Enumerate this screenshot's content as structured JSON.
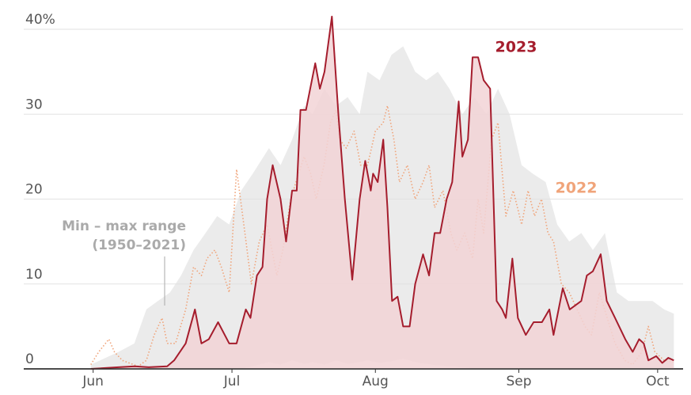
{
  "chart_data": {
    "type": "line",
    "xlim": [
      -15,
      127.5
    ],
    "xticks": [
      {
        "value": 0,
        "label": "Jun"
      },
      {
        "value": 30,
        "label": "Jul"
      },
      {
        "value": 61,
        "label": "Aug"
      },
      {
        "value": 92,
        "label": "Sep"
      },
      {
        "value": 122,
        "label": "Oct"
      }
    ],
    "ylim": [
      0,
      40.5
    ],
    "yticks": [
      0,
      10,
      20,
      30,
      {
        "value": 40,
        "label": "40%"
      }
    ],
    "grid": true,
    "range": {
      "label": [
        "Min – max range",
        "(1950–2021)"
      ],
      "color": "#ebebeb",
      "x": [
        -0.5,
        5.5,
        8.9,
        11.5,
        14,
        16.6,
        19,
        21.7,
        24.3,
        26.8,
        29.4,
        32,
        34.5,
        38,
        40.5,
        43,
        45.6,
        47.4,
        50,
        52.5,
        55,
        57.6,
        59.3,
        61.9,
        64.5,
        67,
        69.6,
        72,
        74.5,
        77,
        79.8,
        82.4,
        85,
        87.5,
        90,
        92.6,
        95,
        97.8,
        100.3,
        102.9,
        105.5,
        108,
        110.6,
        113.2,
        115.7,
        118.3,
        120.9,
        123.4,
        125.5
      ],
      "high": [
        0.5,
        2,
        3,
        7,
        8,
        9,
        11,
        14,
        16,
        18,
        17,
        21,
        23,
        26,
        24,
        27,
        31,
        30,
        33,
        31,
        32,
        30,
        35,
        34,
        37,
        38,
        35,
        34,
        35,
        33,
        30,
        32,
        30,
        33,
        30,
        24,
        23,
        22,
        17,
        15,
        16,
        14,
        16,
        9,
        8,
        8,
        8,
        7,
        6.5
      ],
      "low": [
        0,
        0,
        0,
        0,
        0,
        0,
        0,
        0,
        0,
        0,
        0,
        0,
        0.3,
        0.8,
        0.5,
        1,
        0.6,
        0.8,
        0.5,
        1,
        0.6,
        0.8,
        1,
        0.7,
        0.9,
        1.2,
        0.8,
        0.6,
        0.4,
        0.3,
        0.2,
        0,
        0,
        0,
        0,
        0,
        0,
        0,
        0,
        0,
        0,
        0,
        0,
        0,
        0,
        0,
        0,
        0,
        0
      ]
    },
    "series": [
      {
        "name": "2022",
        "color": "#f0a47a",
        "style": "dotted",
        "x": [
          -0.5,
          1.2,
          3.4,
          4.6,
          6.3,
          9.7,
          11.5,
          13.2,
          14.9,
          16,
          17.8,
          20,
          21.7,
          23.4,
          24.6,
          26.3,
          27.7,
          29.4,
          31,
          32.8,
          34.2,
          35.9,
          37.6,
          39.7,
          41,
          42.7,
          44.4,
          45.6,
          47,
          48.2,
          49.9,
          51.3,
          52.5,
          53.3,
          54.7,
          56.4,
          57.8,
          59.3,
          61,
          62.7,
          63.6,
          65,
          66.2,
          67.9,
          69.6,
          71.3,
          72.6,
          73.8,
          75.6,
          77.3,
          78.6,
          80.3,
          82,
          83.2,
          84.4,
          86.1,
          87.5,
          89.2,
          90.8,
          92.6,
          94,
          95.4,
          96.9,
          98.3,
          99.5,
          101.2,
          102.9,
          104.6,
          106.3,
          107.7,
          109.4,
          111.1,
          112.8,
          114.9,
          116.6,
          118.6,
          120,
          121.4,
          123.4,
          125.5
        ],
        "values": [
          0.5,
          2,
          3.5,
          2,
          1,
          0.3,
          1,
          4,
          6,
          3,
          3,
          7,
          12,
          11,
          13,
          14,
          12,
          9,
          23.5,
          16,
          10,
          15,
          17,
          11,
          14,
          20,
          23,
          25,
          23,
          20,
          24,
          29,
          30.5,
          27,
          26,
          28,
          24,
          24,
          28,
          29,
          31,
          27,
          22,
          24,
          20,
          22,
          24,
          19,
          21,
          16,
          14,
          16,
          13,
          20,
          16,
          27,
          29,
          18,
          21,
          17,
          21,
          18,
          20,
          16,
          15,
          10,
          9,
          7,
          5,
          4,
          9,
          6,
          3,
          1,
          0.5,
          2,
          5,
          2,
          1,
          0.8
        ]
      },
      {
        "name": "2023",
        "color": "#a51d2d",
        "style": "solid",
        "fill": "#f2d3d6",
        "x": [
          -0.5,
          5.5,
          9,
          12,
          16,
          17.5,
          20,
          22,
          23.4,
          25,
          27,
          29.4,
          31,
          33,
          34,
          35.4,
          36.6,
          37.6,
          38.8,
          40.5,
          41.7,
          43,
          44,
          44.8,
          46,
          48,
          49,
          50,
          51.6,
          53,
          54.4,
          56,
          57.6,
          58.8,
          60,
          60.5,
          61.5,
          62.7,
          63.6,
          64.6,
          65.8,
          67,
          68.4,
          69.6,
          71.3,
          72.6,
          73.8,
          75,
          76.4,
          77.6,
          79,
          79.8,
          81,
          82,
          83.2,
          84.4,
          85.8,
          87.2,
          88.4,
          89.2,
          90.6,
          91.8,
          93.5,
          95.2,
          97,
          98.6,
          99.5,
          101.5,
          103,
          105.5,
          106.7,
          108,
          109.7,
          111,
          112.8,
          115,
          116.6,
          118,
          119,
          120,
          121.7,
          123,
          124.3,
          125.5
        ],
        "values": [
          0,
          0.2,
          0.3,
          0.2,
          0.3,
          1,
          3,
          7,
          3,
          3.5,
          5.5,
          3,
          3,
          7,
          6,
          11,
          12,
          20,
          24,
          20,
          15,
          21,
          21,
          30.5,
          30.5,
          36,
          33,
          35,
          41.5,
          30,
          20,
          10.5,
          20,
          24.5,
          21,
          23,
          22,
          27,
          19,
          8,
          8.5,
          5,
          5,
          10,
          13.5,
          11,
          16,
          16,
          20,
          22,
          31.5,
          25,
          27,
          36.7,
          36.7,
          34,
          33,
          8,
          7,
          6,
          13,
          6,
          4,
          5.5,
          5.5,
          7,
          4,
          9.5,
          7,
          8,
          11,
          11.5,
          13.5,
          8,
          6,
          3.5,
          2,
          3.5,
          3,
          1,
          1.5,
          0.7,
          1.3,
          1
        ]
      }
    ]
  }
}
